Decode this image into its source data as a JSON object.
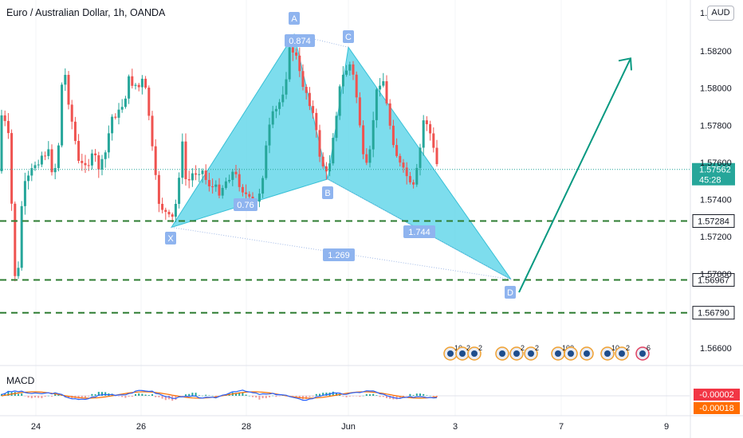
{
  "header": {
    "title": "Euro / Australian Dollar, 1h, OANDA",
    "currency": "AUD",
    "top_tick": "1.5"
  },
  "colors": {
    "up": "#26a69a",
    "down": "#ef5350",
    "pattern_fill": "#5dd4e8",
    "pattern_stroke": "#37c0d6",
    "point_label": "#8fb4ef",
    "level_line": "#2e7d32",
    "arrow": "#089981",
    "price_badge": "#26a69a",
    "macd_line": "#2962ff",
    "signal_line": "#ff6d00",
    "macd_neg_badge": "#f23645",
    "signal_badge": "#ff6d00"
  },
  "chart_data": {
    "type": "candlestick",
    "instrument": "Euro / Australian Dollar",
    "timeframe": "1h",
    "source": "OANDA",
    "y_ticks": [
      1.582,
      1.58,
      1.578,
      1.576,
      1.574,
      1.572,
      1.57,
      1.566
    ],
    "y_tick_labels": [
      "1.58200",
      "1.58000",
      "1.57800",
      "1.57600",
      "1.57400",
      "1.57200",
      "1.57000",
      "1.56600"
    ],
    "x_ticks": [
      "24",
      "26",
      "28",
      "Jun",
      "3",
      "7",
      "9"
    ],
    "current_price": {
      "value": 1.57562,
      "label": "1.57562",
      "countdown": "45:28"
    },
    "levels": [
      {
        "label": "1.57284",
        "value": 1.57284
      },
      {
        "label": "1.56967",
        "value": 1.56967
      },
      {
        "label": "1.56790",
        "value": 1.5679
      }
    ],
    "harmonic_pattern": {
      "points": [
        {
          "name": "X",
          "date": "May 26",
          "price": 1.5725
        },
        {
          "name": "A",
          "date": "May 29",
          "price": 1.5829
        },
        {
          "name": "B",
          "date": "May 31",
          "price": 1.5751
        },
        {
          "name": "C",
          "date": "Jun 1",
          "price": 1.5822
        },
        {
          "name": "D",
          "date": "Jun 4",
          "price": 1.5697
        }
      ],
      "ratios": [
        "0.874",
        "0.76",
        "1.744",
        "1.269"
      ]
    },
    "projection_arrow": {
      "from_price": 1.569,
      "to_price": 1.5816
    },
    "macd": {
      "title": "MACD",
      "values": [
        "-0.00002",
        "-0.00018"
      ]
    },
    "event_badges": [
      "10",
      "2",
      "2",
      "2",
      "2",
      "100",
      "10",
      "2",
      "6"
    ]
  }
}
